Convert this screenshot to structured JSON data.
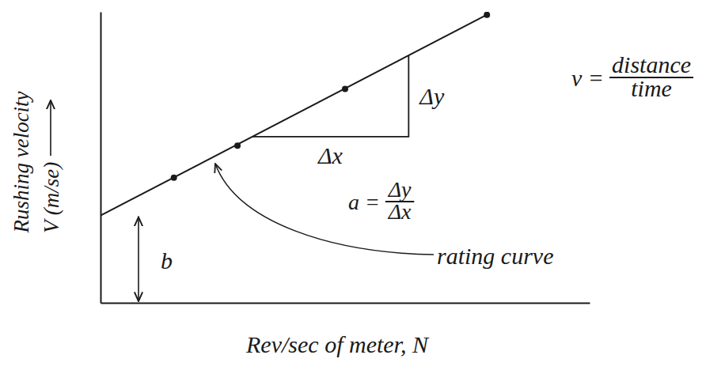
{
  "chart_data": {
    "type": "line",
    "y_label": [
      "Rushing velocity",
      "V (m/se)"
    ],
    "x_label": "Rev/sec of meter, N",
    "xlim": [
      0,
      10
    ],
    "ylim": [
      0,
      10
    ],
    "xticks": [],
    "yticks": [],
    "tick_labels": false,
    "grid": false,
    "series": [
      {
        "type": "line",
        "line_style": "solid",
        "x": [
          0,
          7.9
        ],
        "values": [
          3.0,
          9.9
        ]
      },
      {
        "type": "scatter",
        "marker": "circle",
        "x": [
          1.5,
          2.8,
          5.0,
          7.9
        ],
        "values": [
          4.3,
          5.4,
          7.35,
          9.9
        ]
      }
    ],
    "slope_triangle": {
      "x": [
        3.1,
        6.3
      ],
      "dy_label": "Δy",
      "dx_label": "Δx"
    },
    "slope_label": {
      "lhs": "a =",
      "numerator": "Δy",
      "denominator": "Δx"
    },
    "intercept_label": "b",
    "curve_label": "rating curve",
    "velocity_formula": {
      "lhs": "v =",
      "numerator": "distance",
      "denominator": "time"
    }
  }
}
